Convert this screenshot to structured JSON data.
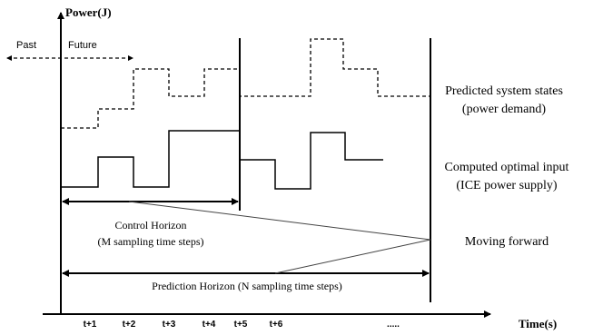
{
  "labels": {
    "y_axis": "Power(J)",
    "x_axis": "Time(s)",
    "past": "Past",
    "future": "Future",
    "predicted_line1": "Predicted system states",
    "predicted_line2": "(power demand)",
    "computed_line1": "Computed optimal input",
    "computed_line2": "(ICE power supply)",
    "moving_forward": "Moving forward",
    "control_horizon_line1": "Control Horizon",
    "control_horizon_line2": "(M sampling  time steps)",
    "prediction_horizon": "Prediction Horizon  (N sampling  time steps)"
  },
  "time_ticks": [
    "t+1",
    "t+2",
    "t+3",
    "t+4",
    "t+5",
    "t+6",
    "....."
  ]
}
